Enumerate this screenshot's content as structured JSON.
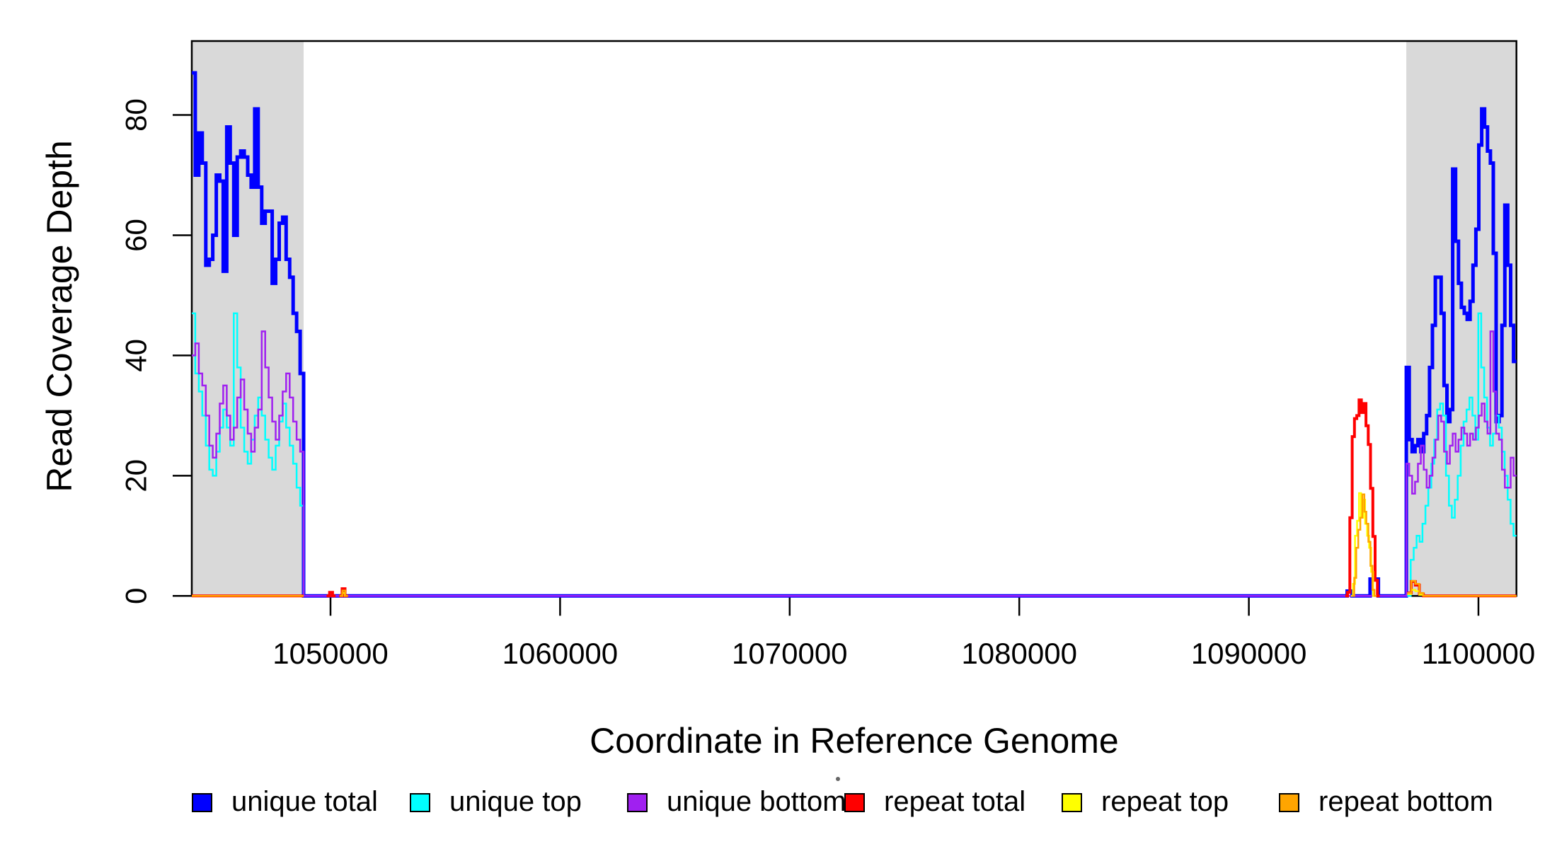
{
  "chart_data": {
    "type": "step-line",
    "title": "",
    "xlabel": "Coordinate in Reference Genome",
    "ylabel": "Read Coverage Depth",
    "xlim": [
      1043958,
      1101655
    ],
    "ylim": [
      0,
      92.3
    ],
    "x_ticks": [
      {
        "value": 1050000,
        "label": "1050000"
      },
      {
        "value": 1060000,
        "label": "1060000"
      },
      {
        "value": 1070000,
        "label": "1070000"
      },
      {
        "value": 1080000,
        "label": "1080000"
      },
      {
        "value": 1090000,
        "label": "1090000"
      },
      {
        "value": 1100000,
        "label": "1100000"
      }
    ],
    "y_ticks": [
      {
        "value": 0,
        "label": "0"
      },
      {
        "value": 20,
        "label": "20"
      },
      {
        "value": 40,
        "label": "40"
      },
      {
        "value": 60,
        "label": "60"
      },
      {
        "value": 80,
        "label": "80"
      }
    ],
    "grid": false,
    "shade_color": "#D9D9D9",
    "shaded_regions": [
      {
        "from": 1043958,
        "to": 1048829
      },
      {
        "from": 1096860,
        "to": 1101655
      }
    ],
    "series": [
      {
        "name": "unique total",
        "color": "#0000FF",
        "line_width": 5,
        "runs": [
          [
            {
              "a": 1043958,
              "b": 1048829,
              "v": [
                87,
                70,
                77,
                72,
                55,
                56,
                60,
                70,
                69,
                54,
                78,
                72,
                60,
                73,
                74,
                73,
                70,
                68,
                81,
                68,
                62,
                64,
                64,
                52,
                56,
                62,
                63,
                56,
                53,
                47,
                44,
                37
              ]
            },
            {
              "a": 1048829,
              "b": 1094280,
              "v": [
                0
              ]
            },
            {
              "a": 1094280,
              "b": 1094490,
              "v": [
                0.8
              ]
            },
            {
              "a": 1094490,
              "b": 1095280,
              "v": [
                0
              ]
            },
            {
              "a": 1095280,
              "b": 1095640,
              "v": [
                2.8
              ]
            },
            {
              "a": 1095640,
              "b": 1096860,
              "v": [
                0
              ]
            },
            {
              "a": 1096860,
              "b": 1101655,
              "v": [
                38,
                26,
                24,
                25,
                26,
                24,
                27,
                30,
                38,
                45,
                53,
                53,
                47,
                35,
                29,
                31,
                71,
                59,
                52,
                48,
                47,
                46,
                49,
                55,
                61,
                75,
                81,
                78,
                74,
                72,
                57,
                29,
                30,
                45,
                65,
                55,
                45,
                39
              ]
            }
          ]
        ]
      },
      {
        "name": "unique top",
        "color": "#00FFFF",
        "line_width": 2.5,
        "runs": [
          [
            {
              "a": 1043958,
              "b": 1048829,
              "v": [
                47,
                37,
                34,
                30,
                25,
                21,
                20,
                24,
                28,
                31,
                28,
                25,
                47,
                38,
                28,
                24,
                22,
                26,
                30,
                33,
                30,
                26,
                23,
                21,
                25,
                29,
                32,
                28,
                25,
                22,
                18,
                15
              ]
            },
            {
              "a": 1048829,
              "b": 1097050,
              "v": [
                0
              ]
            },
            {
              "a": 1097050,
              "b": 1101655,
              "v": [
                6,
                8,
                10,
                9,
                12,
                15,
                18,
                22,
                26,
                31,
                32,
                30,
                20,
                15,
                13,
                16,
                20,
                25,
                29,
                31,
                33,
                30,
                26,
                47,
                38,
                33,
                28,
                25,
                27,
                30,
                28,
                24,
                20,
                16,
                12,
                10
              ]
            }
          ]
        ]
      },
      {
        "name": "unique bottom",
        "color": "#A020F0",
        "line_width": 2.5,
        "runs": [
          [
            {
              "a": 1043958,
              "b": 1048829,
              "v": [
                40,
                42,
                37,
                35,
                30,
                25,
                23,
                27,
                32,
                35,
                30,
                26,
                28,
                33,
                36,
                31,
                27,
                24,
                28,
                31,
                44,
                38,
                33,
                29,
                26,
                30,
                34,
                37,
                33,
                29,
                26,
                24
              ]
            },
            {
              "a": 1048829,
              "b": 1096860,
              "v": [
                0
              ]
            },
            {
              "a": 1096860,
              "b": 1101655,
              "v": [
                22,
                20,
                17,
                19,
                22,
                25,
                21,
                18,
                20,
                23,
                26,
                30,
                29,
                24,
                22,
                25,
                27,
                24,
                26,
                28,
                27,
                25,
                27,
                26,
                28,
                30,
                32,
                29,
                27,
                44,
                34,
                27,
                26,
                21,
                18,
                18,
                23,
                20
              ]
            }
          ]
        ]
      },
      {
        "name": "repeat total",
        "color": "#FF0000",
        "line_width": 4,
        "runs": [
          [
            {
              "a": 1043958,
              "b": 1048829,
              "v": [
                0
              ]
            }
          ],
          [
            {
              "a": 1049830,
              "b": 1050220,
              "v": [
                0,
                0.6,
                0
              ]
            }
          ],
          [
            {
              "a": 1050380,
              "b": 1050760,
              "v": [
                0,
                1.2,
                0
              ]
            }
          ],
          [
            {
              "a": 1094200,
              "b": 1095700,
              "v": [
                0,
                0.6,
                13,
                26.5,
                29.5,
                30,
                32.6,
                30.5,
                32,
                28.3,
                25.2,
                17.9,
                9.9,
                2.6,
                0
              ]
            }
          ],
          [
            {
              "a": 1096900,
              "b": 1097600,
              "v": [
                0.5,
                2.4,
                1.8,
                0.3
              ]
            },
            {
              "a": 1097600,
              "b": 1101655,
              "v": [
                0
              ]
            }
          ]
        ]
      },
      {
        "name": "repeat top",
        "color": "#FFFF00",
        "line_width": 2.5,
        "runs": [
          [
            {
              "a": 1043958,
              "b": 1048829,
              "v": [
                0
              ]
            }
          ],
          [
            {
              "a": 1050400,
              "b": 1050740,
              "v": [
                0,
                0.5,
                0
              ]
            }
          ],
          [
            {
              "a": 1094450,
              "b": 1095500,
              "v": [
                0,
                2,
                10,
                12.5,
                17.1,
                13,
                16,
                12,
                10,
                8,
                4,
                0
              ]
            }
          ],
          [
            {
              "a": 1096900,
              "b": 1097600,
              "v": [
                0.3,
                1,
                0.8,
                0.2
              ]
            },
            {
              "a": 1097600,
              "b": 1101655,
              "v": [
                0
              ]
            }
          ]
        ]
      },
      {
        "name": "repeat bottom",
        "color": "#FFA500",
        "line_width": 2.5,
        "runs": [
          [
            {
              "a": 1043958,
              "b": 1048829,
              "v": [
                0
              ]
            }
          ],
          [
            {
              "a": 1050400,
              "b": 1050760,
              "v": [
                0,
                0.9,
                0
              ]
            }
          ],
          [
            {
              "a": 1094500,
              "b": 1095560,
              "v": [
                0,
                3,
                8,
                11,
                13,
                16.9,
                14,
                12,
                9,
                5,
                1,
                0
              ]
            }
          ],
          [
            {
              "a": 1096900,
              "b": 1097600,
              "v": [
                0.5,
                2.5,
                2,
                0.5
              ]
            },
            {
              "a": 1097600,
              "b": 1101655,
              "v": [
                0
              ]
            }
          ]
        ]
      }
    ],
    "legend": {
      "position": "bottom",
      "items": [
        {
          "label": "unique total",
          "color": "#0000FF"
        },
        {
          "label": "unique top",
          "color": "#00FFFF"
        },
        {
          "label": "unique bottom",
          "color": "#A020F0"
        },
        {
          "label": "repeat total",
          "color": "#FF0000"
        },
        {
          "label": "repeat top",
          "color": "#FFFF00"
        },
        {
          "label": "repeat bottom",
          "color": "#FFA500"
        }
      ]
    },
    "colors": {
      "axis": "#000000",
      "background": "#FFFFFF",
      "stray_dot": "#666666"
    }
  }
}
